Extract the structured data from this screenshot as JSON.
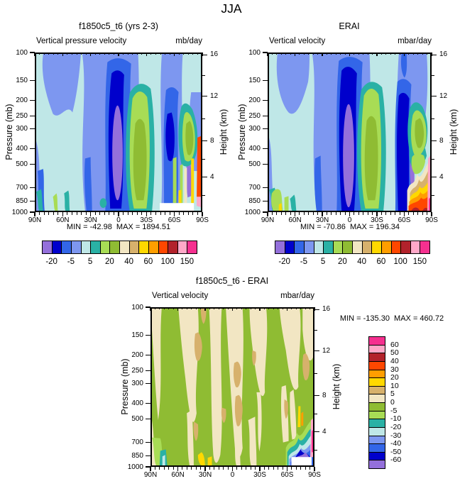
{
  "title": "JJA",
  "palette": [
    "#9470DB",
    "#0000CC",
    "#3366E8",
    "#7D97F0",
    "#BFE7E7",
    "#2AB1A5",
    "#A8DC55",
    "#8FBC33",
    "#F2E6C3",
    "#D7B16C",
    "#FFD800",
    "#FF9E00",
    "#FF4700",
    "#B2222B",
    "#FFA8C8",
    "#F5308F"
  ],
  "panels": [
    {
      "title": "f1850c5_t6 (yrs 2-3)",
      "subtitle_left": "Vertical pressure velocity",
      "subtitle_right": "mb/day",
      "ylabel_left": "Pressure (mb)",
      "ylabel_right": "Height (km)",
      "stats": "MIN = -42.98  MAX = 1894.51",
      "x_ticks": [
        "90N",
        "60N",
        "30N",
        "0",
        "30S",
        "60S",
        "90S"
      ],
      "pressure_ticks": [
        100,
        150,
        200,
        250,
        300,
        400,
        500,
        700,
        850,
        1000
      ],
      "height_ticks": [
        16,
        12,
        8,
        4
      ],
      "colorbar_labels": [
        "-20",
        "-5",
        "5",
        "20",
        "40",
        "60",
        "100",
        "150"
      ]
    },
    {
      "title": "ERAI",
      "subtitle_left": "Vertical velocity",
      "subtitle_right": "mbar/day",
      "ylabel_left": "Pressure (mb)",
      "ylabel_right": "Height (km)",
      "stats": "MIN = -70.86  MAX = 196.34",
      "x_ticks": [
        "90N",
        "60N",
        "30N",
        "0",
        "30S",
        "60S",
        "90S"
      ],
      "pressure_ticks": [
        100,
        150,
        200,
        250,
        300,
        400,
        500,
        700,
        850,
        1000
      ],
      "height_ticks": [
        16,
        12,
        8,
        4
      ],
      "colorbar_labels": [
        "-20",
        "-5",
        "5",
        "20",
        "40",
        "60",
        "100",
        "150"
      ]
    },
    {
      "title": "f1850c5_t6 - ERAI",
      "subtitle_left": "Vertical velocity",
      "subtitle_right": "mbar/day",
      "ylabel_left": "Pressure (mb)",
      "ylabel_right": "Height (km)",
      "stats": "MIN = -135.30  MAX = 460.72",
      "x_ticks": [
        "90N",
        "60N",
        "30N",
        "0",
        "30S",
        "60S",
        "90S"
      ],
      "pressure_ticks": [
        100,
        150,
        200,
        250,
        300,
        400,
        500,
        700,
        850,
        1000
      ],
      "height_ticks": [
        16,
        12,
        8,
        4
      ],
      "colorbar_labels": [
        "60",
        "50",
        "40",
        "30",
        "20",
        "10",
        "5",
        "0",
        "-5",
        "-10",
        "-20",
        "-30",
        "-40",
        "-50",
        "-60"
      ]
    }
  ],
  "chart_data": [
    {
      "type": "contour",
      "title": "f1850c5_t6 (yrs 2-3)",
      "season": "JJA",
      "variable": "Vertical pressure velocity",
      "units": "mb/day",
      "x_axis": {
        "ticks": [
          "90N",
          "60N",
          "30N",
          "0",
          "30S",
          "60S",
          "90S"
        ],
        "minor_interval_deg": 5
      },
      "y_axis_left": {
        "label": "Pressure (mb)",
        "scale": "log",
        "ticks": [
          100,
          150,
          200,
          250,
          300,
          400,
          500,
          700,
          850,
          1000
        ]
      },
      "y_axis_right": {
        "label": "Height (km)",
        "ticks": [
          16,
          12,
          8,
          4
        ]
      },
      "min": -42.98,
      "max": 1894.51,
      "labeled_levels": [
        -20,
        -5,
        5,
        20,
        40,
        60,
        100,
        150
      ],
      "n_colors": 16,
      "legend_position": "below",
      "features": [
        {
          "region": "5N-12N, 180-1000 mb",
          "value": "strong ascent core < -20 (navy) with < -40 inner core (purple)"
        },
        {
          "region": "12S-32S, 160-1000 mb",
          "value": "subsidence maximum 20-60 (yellow-green core ringed by teal)"
        },
        {
          "region": "55S-63S, 300-1000 mb",
          "value": "ascent column -5 to -20 (blue/navy)"
        },
        {
          "region": "72S-85S, 250-650 mb",
          "value": "descent 5-20 (green blob)"
        },
        {
          "region": "60S-90S near surface",
          "value": "extreme alternating values, > 150 at 90S edge; white block = below topography"
        },
        {
          "region": "elsewhere",
          "value": "weak values -10 to 0 (pale cyan / cornflower bands)"
        }
      ]
    },
    {
      "type": "contour",
      "title": "ERAI",
      "season": "JJA",
      "variable": "Vertical velocity",
      "units": "mbar/day",
      "x_axis": {
        "ticks": [
          "90N",
          "60N",
          "30N",
          "0",
          "30S",
          "60S",
          "90S"
        ],
        "minor_interval_deg": 5
      },
      "y_axis_left": {
        "label": "Pressure (mb)",
        "scale": "log",
        "ticks": [
          100,
          150,
          200,
          250,
          300,
          400,
          500,
          700,
          850,
          1000
        ]
      },
      "y_axis_right": {
        "label": "Height (km)",
        "ticks": [
          16,
          12,
          8,
          4
        ]
      },
      "min": -70.86,
      "max": 196.34,
      "labeled_levels": [
        -20,
        -5,
        5,
        20,
        40,
        60,
        100,
        150
      ],
      "n_colors": 16,
      "legend_position": "below",
      "features": [
        {
          "region": "5N-12N, 150-1000 mb",
          "value": "strong ascent < -20 (navy) with purple core reaching surface"
        },
        {
          "region": "12S-32S, 160-1000 mb",
          "value": "subsidence 20-60 (green core, teal ring)"
        },
        {
          "region": "55S-62S, 150-1000 mb",
          "value": "deep ascent column < -20 (navy to surface)"
        },
        {
          "region": "68S-90S, 500-1000 mb",
          "value": "strong descent mountain 40 to > 150 (yellow/orange/red/pink layers)"
        },
        {
          "region": "85N-90N near surface",
          "value": "descent 5-20 (green streaks)"
        }
      ]
    },
    {
      "type": "contour",
      "title": "f1850c5_t6 - ERAI (difference)",
      "season": "JJA",
      "variable": "Vertical velocity",
      "units": "mbar/day",
      "x_axis": {
        "ticks": [
          "90N",
          "60N",
          "30N",
          "0",
          "30S",
          "60S",
          "90S"
        ],
        "minor_interval_deg": 5
      },
      "y_axis_left": {
        "label": "Pressure (mb)",
        "scale": "log",
        "ticks": [
          100,
          150,
          200,
          250,
          300,
          400,
          500,
          700,
          850,
          1000
        ]
      },
      "y_axis_right": {
        "label": "Height (km)",
        "ticks": [
          16,
          12,
          8,
          4
        ]
      },
      "min": -135.3,
      "max": 460.72,
      "labeled_levels": [
        60,
        50,
        40,
        30,
        20,
        10,
        5,
        0,
        -5,
        -10,
        -20,
        -30,
        -40,
        -50,
        -60
      ],
      "n_colors": 16,
      "legend_position": "right",
      "features": [
        {
          "region": "most of domain",
          "value": "-5 to 0 (olive green) with 0 to 5 bands (cream) and 5-10 spots (tan)"
        },
        {
          "region": "25N-32N near surface",
          "value": "10-20 spots (yellow)"
        },
        {
          "region": "85N-90N, 800-1000 mb",
          "value": "-10 to -30 (light green / teal)"
        },
        {
          "region": "68S-90S, 600-1000 mb",
          "value": "large negative anomaly, layered -10 to < -60 (green/teal/blue/navy/purple) with > 50 slivers (pink/magenta) at 90S; white block = below topography"
        }
      ]
    }
  ]
}
